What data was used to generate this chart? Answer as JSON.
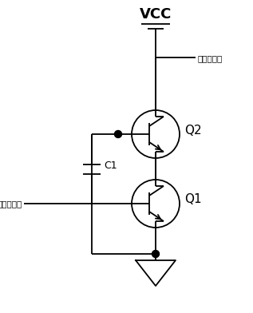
{
  "background": "#ffffff",
  "line_color": "#000000",
  "vcc_label": "VCC",
  "output_label": "信号输出端",
  "input_label": "信号输入端",
  "c1_label": "C1",
  "q1_label": "Q1",
  "q2_label": "Q2",
  "figsize": [
    3.17,
    3.92
  ],
  "dpi": 100
}
